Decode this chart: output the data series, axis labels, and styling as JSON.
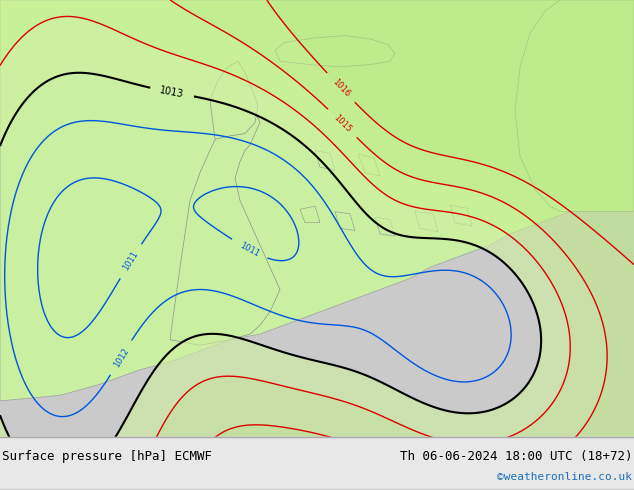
{
  "title_left": "Surface pressure [hPa] ECMWF",
  "title_right": "Th 06-06-2024 18:00 UTC (18+72)",
  "copyright": "©weatheronline.co.uk",
  "bg_color": "#d3d3d3",
  "land_color": "#c8f0a0",
  "sea_color": "#d8d8d8",
  "contour_color_low": "#000000",
  "contour_color_mid": "#ff2222",
  "contour_color_high": "#0000ff",
  "label_fontsize": 7,
  "footer_fontsize": 9,
  "copyright_fontsize": 8,
  "copyright_color": "#1a6fbb"
}
